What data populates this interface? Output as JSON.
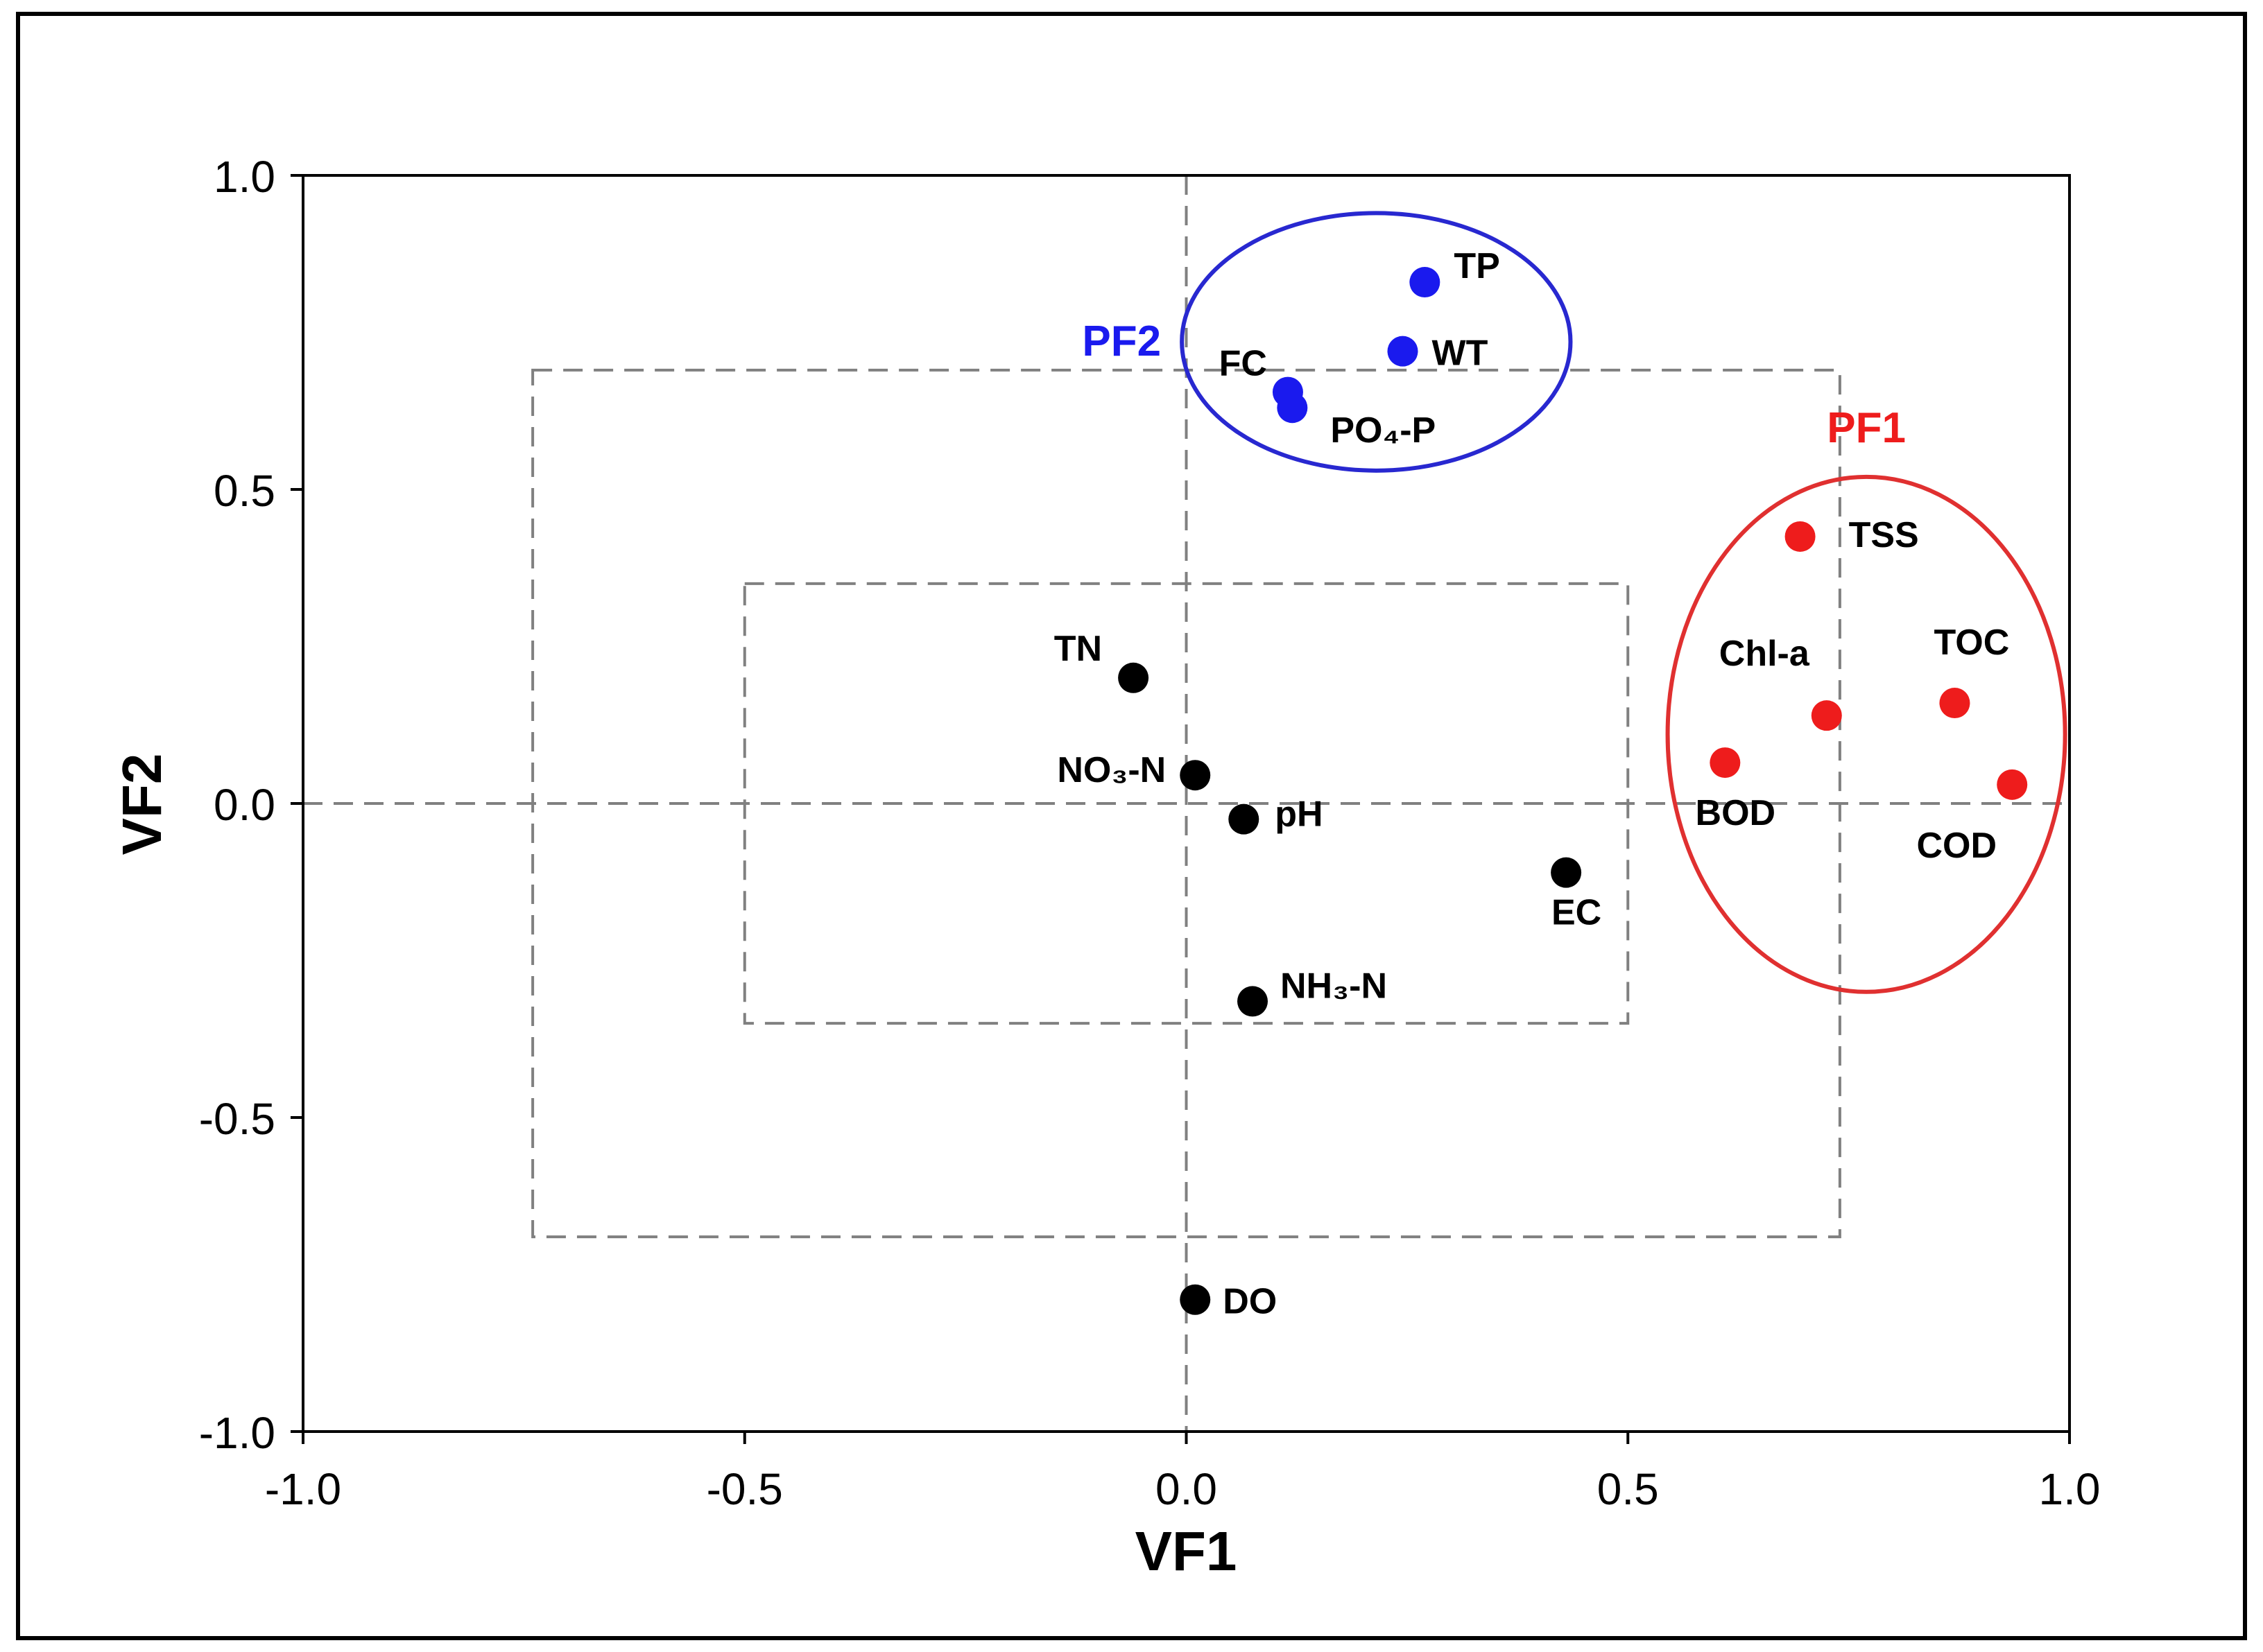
{
  "chart_data": {
    "type": "scatter",
    "title": "",
    "xlabel": "VF1",
    "ylabel": "VF2",
    "xlim": [
      -1.0,
      1.0
    ],
    "ylim": [
      -1.0,
      1.0
    ],
    "xticks": [
      "-1.0",
      "-0.5",
      "0.0",
      "0.5",
      "1.0"
    ],
    "yticks": [
      "-1.0",
      "-0.5",
      "0.0",
      "0.5",
      "1.0"
    ],
    "grid": false,
    "colors": {
      "PF1": "#ee1c1c",
      "PF2": "#1a1aee",
      "other": "#000000",
      "ellipse_PF1": "#e03030",
      "ellipse_PF2": "#2828d0",
      "guides": "#808080"
    },
    "guide_boxes": [
      {
        "x_range": [
          -0.74,
          0.74
        ],
        "y_range": [
          -0.69,
          0.69
        ]
      },
      {
        "x_range": [
          -0.5,
          0.5
        ],
        "y_range": [
          -0.35,
          0.35
        ]
      }
    ],
    "reference_lines": {
      "x": 0.0,
      "y": 0.0
    },
    "groups": [
      {
        "name": "PF1",
        "label": "PF1",
        "color": "#ee1c1c",
        "ellipse": {
          "cx": 0.77,
          "cy": 0.11,
          "rx": 0.225,
          "ry": 0.41
        }
      },
      {
        "name": "PF2",
        "label": "PF2",
        "color": "#1a1aee",
        "ellipse": {
          "cx": 0.215,
          "cy": 0.735,
          "rx": 0.22,
          "ry": 0.205
        }
      }
    ],
    "points": [
      {
        "label": "TP",
        "x": 0.27,
        "y": 0.83,
        "group": "PF2"
      },
      {
        "label": "WT",
        "x": 0.245,
        "y": 0.72,
        "group": "PF2"
      },
      {
        "label": "FC",
        "x": 0.115,
        "y": 0.655,
        "group": "PF2"
      },
      {
        "label": "PO₄-P",
        "x": 0.12,
        "y": 0.63,
        "group": "PF2"
      },
      {
        "label": "TSS",
        "x": 0.695,
        "y": 0.425,
        "group": "PF1"
      },
      {
        "label": "Chl-a",
        "x": 0.725,
        "y": 0.14,
        "group": "PF1"
      },
      {
        "label": "TOC",
        "x": 0.87,
        "y": 0.16,
        "group": "PF1"
      },
      {
        "label": "BOD",
        "x": 0.61,
        "y": 0.065,
        "group": "PF1"
      },
      {
        "label": "COD",
        "x": 0.935,
        "y": 0.03,
        "group": "PF1"
      },
      {
        "label": "TN",
        "x": -0.06,
        "y": 0.2,
        "group": "other"
      },
      {
        "label": "NO₃-N",
        "x": 0.01,
        "y": 0.045,
        "group": "other"
      },
      {
        "label": "pH",
        "x": 0.065,
        "y": -0.025,
        "group": "other"
      },
      {
        "label": "EC",
        "x": 0.43,
        "y": -0.11,
        "group": "other"
      },
      {
        "label": "NH₃-N",
        "x": 0.075,
        "y": -0.315,
        "group": "other"
      },
      {
        "label": "DO",
        "x": 0.01,
        "y": -0.79,
        "group": "other"
      }
    ]
  }
}
